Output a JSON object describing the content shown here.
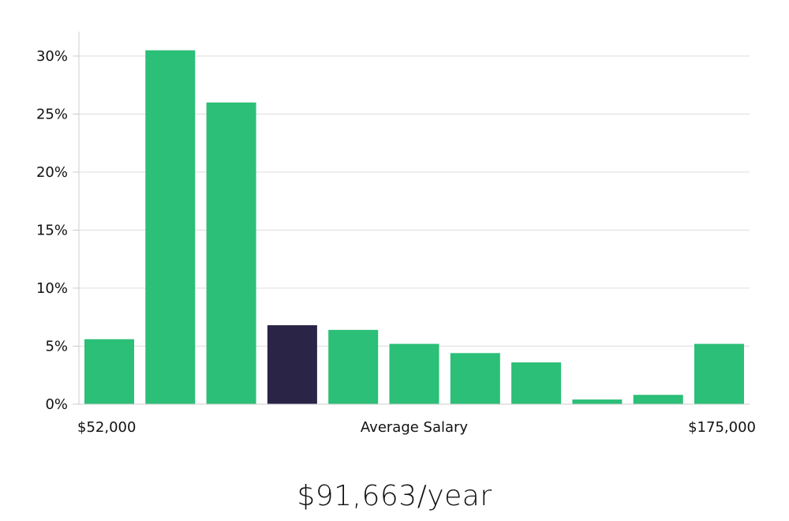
{
  "chart_data": {
    "type": "bar",
    "xlabel": "Average Salary",
    "x_min_label": "$52,000",
    "x_max_label": "$175,000",
    "y_tick_labels": [
      "0%",
      "5%",
      "10%",
      "15%",
      "20%",
      "25%",
      "30%"
    ],
    "y_ticks": [
      0,
      5,
      10,
      15,
      20,
      25,
      30
    ],
    "ylim": [
      0,
      32
    ],
    "values": [
      5.6,
      30.5,
      26.0,
      6.8,
      6.4,
      5.2,
      4.4,
      3.6,
      0.4,
      0.8,
      5.2
    ],
    "highlight_index": 3,
    "grid": true,
    "colors": {
      "bar": "#2bbf77",
      "highlight": "#2a2547",
      "grid": "#dddddd",
      "axis": "#cccccc"
    }
  },
  "average_salary": "$91,663/year"
}
